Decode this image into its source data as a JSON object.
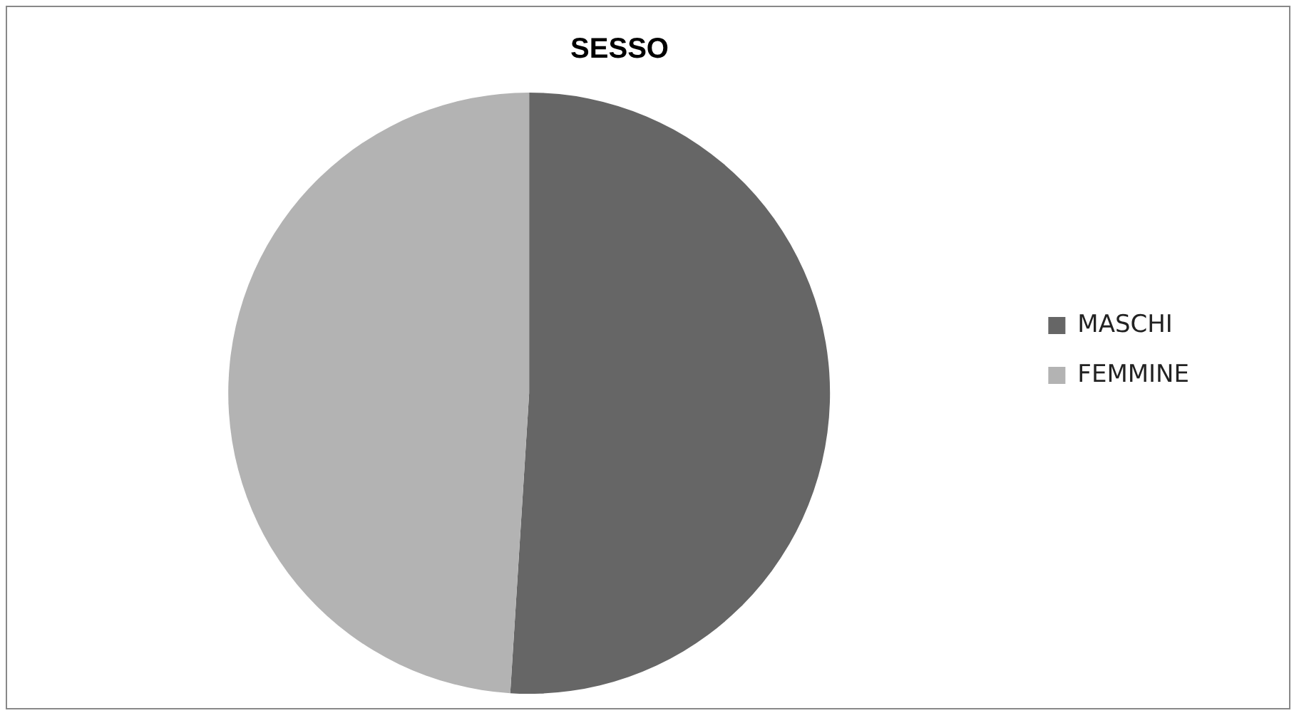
{
  "chart_data": {
    "type": "pie",
    "title": "SESSO",
    "categories": [
      "MASCHI",
      "FEMMINE"
    ],
    "values": [
      51,
      49
    ],
    "colors": [
      "#666666",
      "#b3b3b3"
    ],
    "legend": "right"
  }
}
